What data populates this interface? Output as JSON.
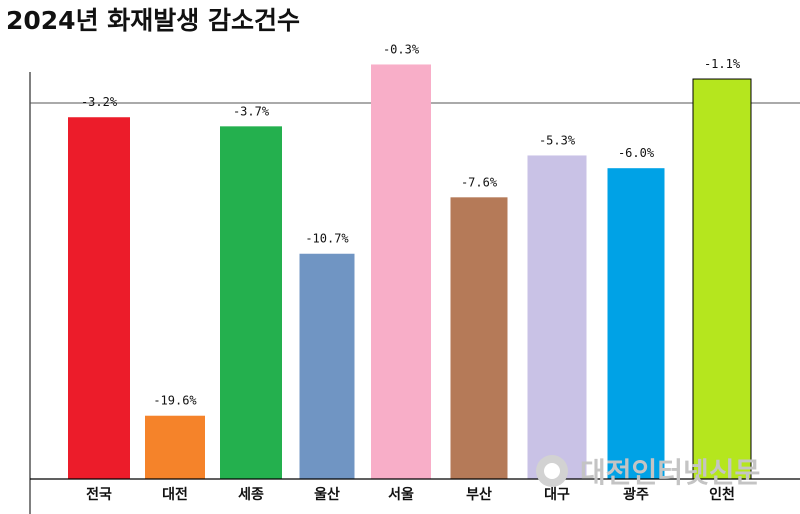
{
  "watermark": "대전인터넷신문",
  "chart_data": {
    "type": "bar",
    "title": "2024년 화재발생 감소건수",
    "xlabel": "",
    "ylabel": "",
    "categories": [
      "전국",
      "대전",
      "세종",
      "울산",
      "서울",
      "부산",
      "대구",
      "광주",
      "인천"
    ],
    "values": [
      -3.2,
      -19.6,
      -3.7,
      -10.7,
      -0.3,
      -7.6,
      -5.3,
      -6.0,
      -1.1
    ],
    "value_labels": [
      "-3.2%",
      "-19.6%",
      "-3.7%",
      "-10.7%",
      "-0.3%",
      "-7.6%",
      "-5.3%",
      "-6.0%",
      "-1.1%"
    ],
    "colors": [
      "#ec1c2a",
      "#f5832a",
      "#24b04e",
      "#7095c3",
      "#f8aec8",
      "#b57a58",
      "#c9c2e6",
      "#00a2e6",
      "#b5e61e"
    ],
    "ylim": [
      -22,
      0
    ],
    "grid": false,
    "legend": "none"
  }
}
